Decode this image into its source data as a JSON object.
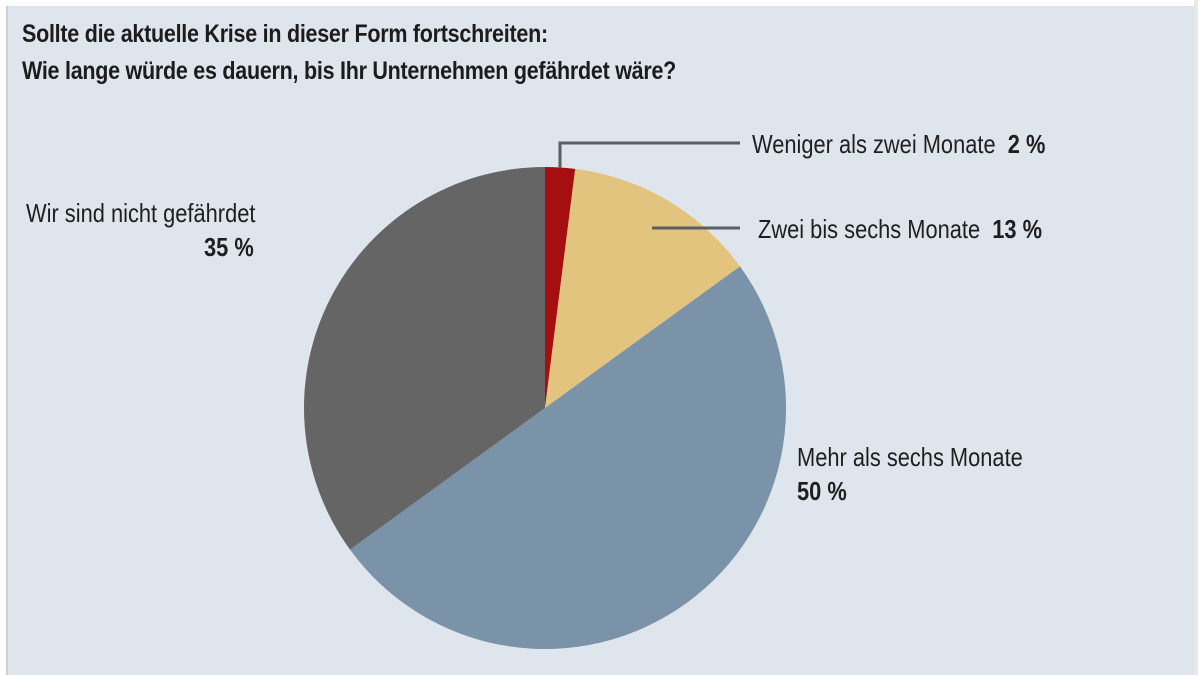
{
  "title": {
    "line1": "Sollte die aktuelle Krise in dieser Form fortschreiten:",
    "line2": "Wie lange würde es dauern, bis Ihr Unternehmen gefährdet wäre?"
  },
  "labels": {
    "weniger": {
      "text": "Weniger als zwei Monate",
      "pct": "2 %"
    },
    "zwei_bis_sechs": {
      "text": "Zwei bis sechs Monate",
      "pct": "13 %"
    },
    "mehr": {
      "text": "Mehr als sechs Monate",
      "pct": "50 %"
    },
    "nicht": {
      "text": "Wir sind nicht gefährdet",
      "pct": "35 %"
    }
  },
  "colors": {
    "background": "#dfe5ec",
    "weniger": "#a50f0f",
    "zwei_bis_sechs": "#e3c47e",
    "mehr": "#7a93a8",
    "nicht": "#656565",
    "leader_line": "#5a5f66"
  },
  "chart_data": {
    "type": "pie",
    "title": "Sollte die aktuelle Krise in dieser Form fortschreiten: Wie lange würde es dauern, bis Ihr Unternehmen gefährdet wäre?",
    "categories": [
      "Weniger als zwei Monate",
      "Zwei bis sechs Monate",
      "Mehr als sechs Monate",
      "Wir sind nicht gefährdet"
    ],
    "values": [
      2,
      13,
      50,
      35
    ],
    "unit": "%",
    "start_angle": "12 o'clock, clockwise",
    "legend": "direct labels"
  }
}
